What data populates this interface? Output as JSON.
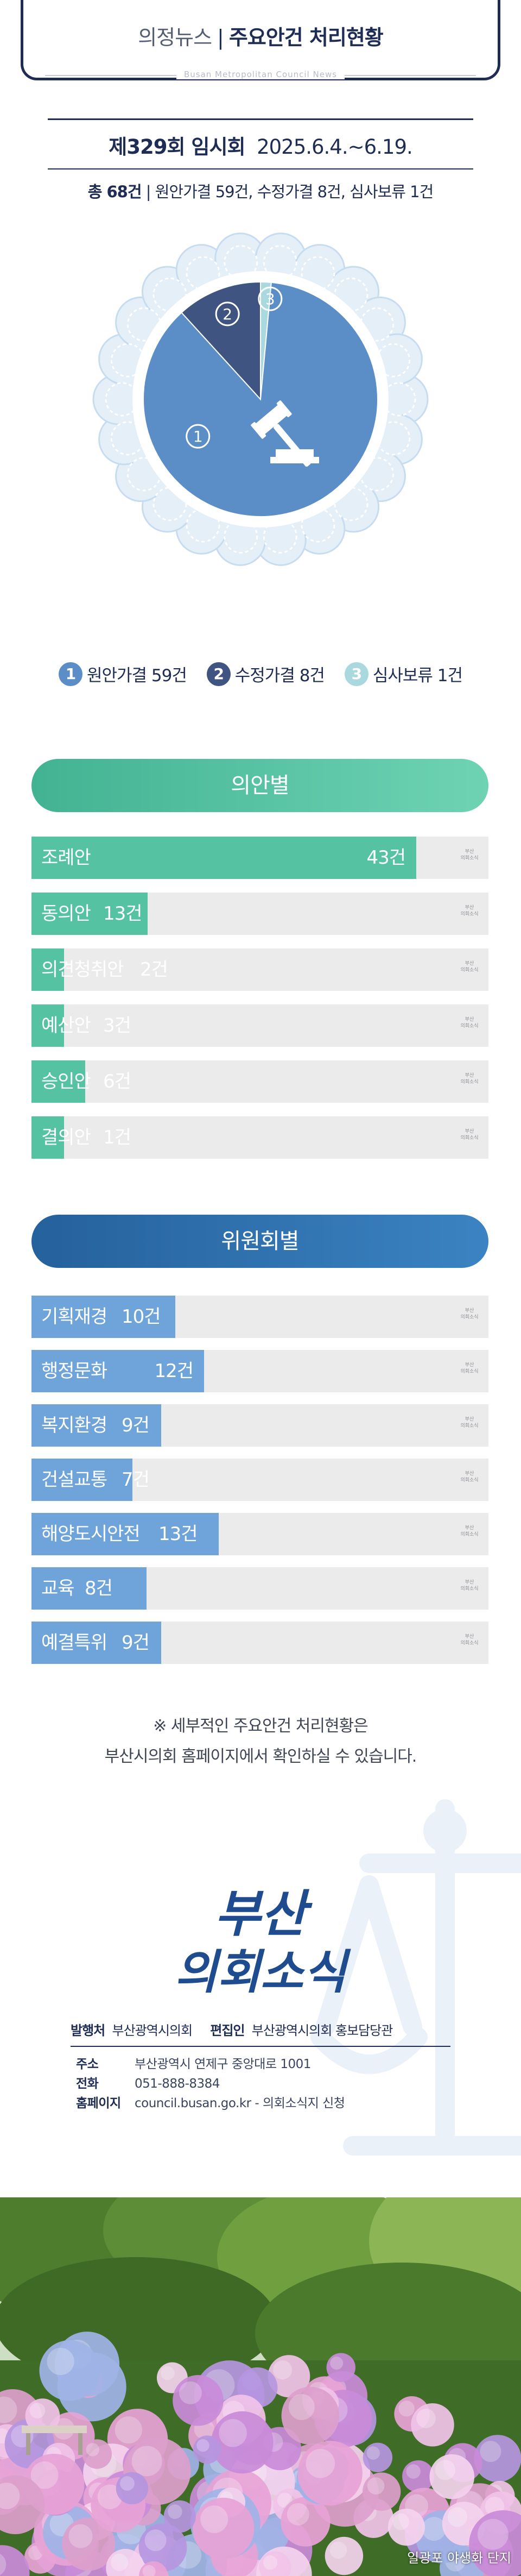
{
  "header": {
    "category": "의정뉴스",
    "separator": "|",
    "title": "주요안건 처리현황",
    "subtitle": "Busan Metropolitan Council News"
  },
  "session": {
    "name": "제329회 임시회",
    "period": "2025.6.4.~6.19."
  },
  "summary": {
    "total": "총 68건",
    "separator": "|",
    "detail": "원안가결 59건, 수정가결 8건, 심사보류 1건"
  },
  "pie": {
    "colors": {
      "original": "#5b8ec7",
      "amended": "#3f5480",
      "pending": "#a9d8df",
      "scallop": "#e4eff8"
    },
    "slices": [
      {
        "num": "1",
        "label": "원안가결 59건",
        "value": 59,
        "color": "#5b8ec7"
      },
      {
        "num": "2",
        "label": "수정가결 8건",
        "value": 8,
        "color": "#3f5480"
      },
      {
        "num": "3",
        "label": "심사보류 1건",
        "value": 1,
        "color": "#a9d8df"
      }
    ]
  },
  "by_type": {
    "title": "의안별",
    "color": "#55c3a2",
    "banner_color": "#48b897",
    "max": 45,
    "items": [
      {
        "name": "조례안",
        "count": "43건",
        "value": 43
      },
      {
        "name": "동의안",
        "count": "13건",
        "value": 13
      },
      {
        "name": "의견청취안",
        "count": "2건",
        "value": 2
      },
      {
        "name": "예산안",
        "count": "3건",
        "value": 3
      },
      {
        "name": "승인안",
        "count": "6건",
        "value": 6
      },
      {
        "name": "결의안",
        "count": "1건",
        "value": 1
      }
    ]
  },
  "by_committee": {
    "title": "위원회별",
    "color": "#6ea4d9",
    "banner_color": "#2c6fae",
    "max": 28,
    "items": [
      {
        "name": "기획재경",
        "count": "10건",
        "value": 10
      },
      {
        "name": "행정문화",
        "count": "12건",
        "value": 12
      },
      {
        "name": "복지환경",
        "count": "9건",
        "value": 9
      },
      {
        "name": "건설교통",
        "count": "7건",
        "value": 7
      },
      {
        "name": "해양도시안전",
        "count": "13건",
        "value": 13
      },
      {
        "name": "교육",
        "count": "8건",
        "value": 8
      },
      {
        "name": "예결특위",
        "count": "9건",
        "value": 9
      }
    ]
  },
  "bar_logo": {
    "line1": "부산",
    "line2": "의회소식"
  },
  "note": {
    "line1": "※ 세부적인 주요안건 처리현황은",
    "line2": "부산시의회 홈페이지에서 확인하실 수 있습니다."
  },
  "footer": {
    "logo_line1": "부산",
    "logo_line2": "의회소식",
    "publisher_label": "발행처",
    "publisher": "부산광역시의회",
    "editor_label": "편집인",
    "editor": "부산광역시의회 홍보담당관",
    "contacts": [
      {
        "label": "주소",
        "value": "부산광역시 연제구 중앙대로 1001"
      },
      {
        "label": "전화",
        "value": "051-888-8384"
      },
      {
        "label": "홈페이지",
        "value": "council.busan.go.kr - 의회소식지 신청"
      }
    ]
  },
  "photo": {
    "caption": "일광포 야생화 단지"
  }
}
